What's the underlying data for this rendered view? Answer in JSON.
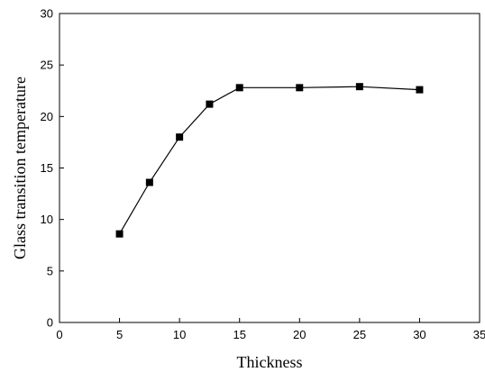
{
  "chart_data": {
    "type": "line",
    "title": "",
    "xlabel": "Thickness",
    "ylabel": "Glass transition temperature",
    "xlim": [
      0,
      35
    ],
    "ylim": [
      0,
      30
    ],
    "xticks": [
      0,
      5,
      10,
      15,
      20,
      25,
      30,
      35
    ],
    "yticks": [
      0,
      5,
      10,
      15,
      20,
      25,
      30
    ],
    "grid": false,
    "legend": "none",
    "series": [
      {
        "x": [
          5,
          7.5,
          10,
          12.5,
          15,
          20,
          25,
          30
        ],
        "y": [
          8.6,
          13.6,
          18.0,
          21.2,
          22.8,
          22.8,
          22.9,
          22.6
        ],
        "marker": "square",
        "color": "#000000"
      }
    ]
  }
}
